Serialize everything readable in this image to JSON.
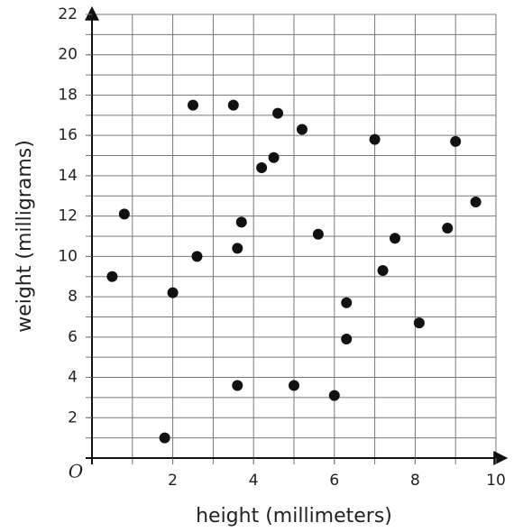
{
  "chart_data": {
    "type": "scatter",
    "x_label": "height (millimeters)",
    "y_label": "weight (milligrams)",
    "origin_label": "O",
    "color": "#111111",
    "x": [
      0.5,
      0.8,
      1.8,
      2,
      2.5,
      2.6,
      3.5,
      3.6,
      3.6,
      3.7,
      4.2,
      4.5,
      4.6,
      5.0,
      5.2,
      5.6,
      6.0,
      6.3,
      6.3,
      7.0,
      7.2,
      7.5,
      8.1,
      8.8,
      9.0,
      9.5
    ],
    "values": [
      9,
      12.1,
      1,
      8.2,
      17.5,
      10,
      17.5,
      10.4,
      3.6,
      11.7,
      14.4,
      14.9,
      17.1,
      3.6,
      16.3,
      11.1,
      3.1,
      7.7,
      5.9,
      15.8,
      9.3,
      10.9,
      6.7,
      11.4,
      15.7,
      12.7
    ],
    "xlim": [
      0,
      10
    ],
    "ylim": [
      0,
      22
    ],
    "xticks": [
      2,
      4,
      6,
      8,
      10
    ],
    "yticks": [
      2,
      4,
      6,
      8,
      10,
      12,
      14,
      16,
      18,
      20,
      22
    ],
    "x_gridlines": [
      1,
      2,
      3,
      4,
      5,
      6,
      7,
      8,
      9,
      10
    ],
    "y_gridlines": [
      1,
      2,
      3,
      4,
      5,
      6,
      7,
      8,
      9,
      10,
      11,
      12,
      13,
      14,
      15,
      16,
      17,
      18,
      19,
      20,
      21,
      22
    ]
  }
}
